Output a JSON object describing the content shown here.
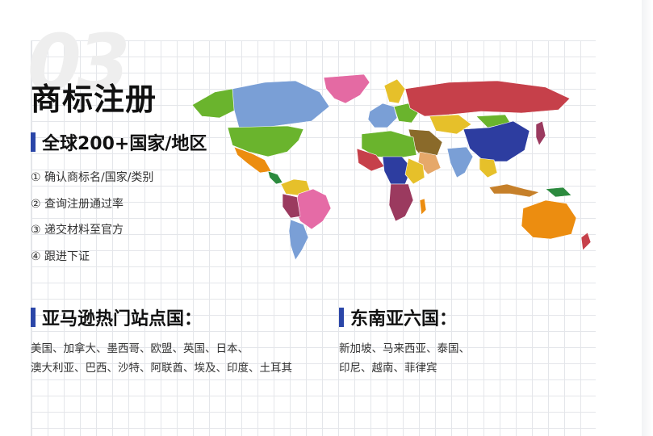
{
  "header": {
    "big_number": "03",
    "title": "商标注册"
  },
  "global": {
    "heading": "全球200+国家/地区",
    "steps": [
      "① 确认商标名/国家/类别",
      "② 查询注册通过率",
      "③ 递交材料至官方",
      "④ 跟进下证"
    ]
  },
  "amazon": {
    "heading": "亚马逊热门站点国：",
    "line1": "美国、加拿大、墨西哥、欧盟、英国、日本、",
    "line2": "澳大利亚、巴西、沙特、阿联酋、埃及、印度、土耳其"
  },
  "sea": {
    "heading": "东南亚六国：",
    "line1": "新加坡、马来西亚、泰国、",
    "line2": "印尼、越南、菲律宾"
  },
  "colors": {
    "accent_bar": "#2b46a8",
    "canada": "#7a9fd6",
    "usa": "#6ab42d",
    "russia": "#c6404a",
    "china": "#2d3da0",
    "brazil": "#e56ba6",
    "australia": "#ec8d10",
    "greenland": "#e46aa3"
  }
}
